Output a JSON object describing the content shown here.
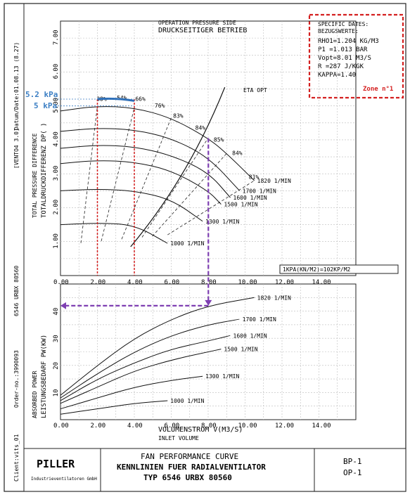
{
  "side": {
    "vento": "[VENTO4 3.0]",
    "date": "Datum/Date:01.08.13 (8.27)",
    "urbx": "6546 URBX 80560",
    "order": "Order-no.:3990093",
    "client": "Client:vits_01"
  },
  "header": {
    "line1": "OPERATION PRESSURE SIDE",
    "line2": "DRUCKSEITIGER BETRIEB"
  },
  "specific": {
    "title1": "SPECIFIC DATES:",
    "title2": "BEZUGSWERTE:",
    "lines": [
      "RHO1=1.204 KG/M3",
      "P1  =1.013 BAR",
      "Vopt=8.01  M3/S",
      "R   =287   J/KGK",
      "KAPPA=1.40"
    ],
    "zone": "Zone n°1"
  },
  "annotations": {
    "kpa52": "5.2 kPa",
    "kpa5": "5 kPa",
    "eta_opt": "ETA OPT",
    "unit_note": "1KPA(KN/M2)=102KP/M2"
  },
  "titleblock": {
    "brand": "PILLER",
    "brand_sub": "Industrieventilatoren GmbH",
    "t1": "FAN PERFORMANCE CURVE",
    "t2": "KENNLINIEN FUER RADIALVENTILATOR",
    "t3": "TYP    6546  URBX    80560",
    "bp": "BP-1",
    "op": "OP-1"
  },
  "chart_data": [
    {
      "type": "line",
      "xlabel": "",
      "ylabel_1": "TOTAL PRESSURE DIFFERENCE",
      "ylabel_2": "TOTALDRUCKDIFFERENZ DP(   )",
      "xlim": [
        0,
        16
      ],
      "ylim": [
        0,
        7.5
      ],
      "x_ticks": [
        "0.00",
        "2.00",
        "4.00",
        "6.00",
        "8.00",
        "10.00",
        "12.00",
        "14.00"
      ],
      "y_ticks": [
        "1.00",
        "2.00",
        "3.00",
        "4.00",
        "5.00",
        "6.00",
        "7.00"
      ],
      "series": [
        {
          "name": "1820 1/MIN",
          "x": [
            0,
            2,
            4,
            6,
            8,
            9,
            10.5
          ],
          "y": [
            4.85,
            5.0,
            4.95,
            4.65,
            4.05,
            3.6,
            2.8
          ]
        },
        {
          "name": "1700 1/MIN",
          "x": [
            0,
            2,
            4,
            6,
            8,
            9.7
          ],
          "y": [
            4.25,
            4.35,
            4.3,
            4.05,
            3.5,
            2.5
          ]
        },
        {
          "name": "1600 1/MIN",
          "x": [
            0,
            2,
            4,
            6,
            8,
            9.2
          ],
          "y": [
            3.75,
            3.85,
            3.8,
            3.55,
            3.05,
            2.3
          ]
        },
        {
          "name": "1500 1/MIN",
          "x": [
            0,
            2,
            4,
            6,
            8,
            8.7
          ],
          "y": [
            3.3,
            3.4,
            3.35,
            3.1,
            2.5,
            2.1
          ]
        },
        {
          "name": "1300 1/MIN",
          "x": [
            0,
            2,
            4,
            6,
            7.7
          ],
          "y": [
            2.5,
            2.55,
            2.5,
            2.25,
            1.6
          ]
        },
        {
          "name": "1000 1/MIN",
          "x": [
            0,
            2,
            4,
            5.8
          ],
          "y": [
            1.5,
            1.55,
            1.5,
            0.95
          ]
        }
      ],
      "efficiency_labels": [
        "38%",
        "54%",
        "66%",
        "76%",
        "83%",
        "84%",
        "85%",
        "84%",
        "81%"
      ],
      "eta_opt": {
        "x": [
          3.8,
          8.9
        ],
        "y": [
          0.85,
          5.55
        ]
      },
      "markers": {
        "x_lines": [
          2.0,
          4.0
        ],
        "v_opt": 8.01,
        "p_low": 5.0,
        "p_high": 5.2
      }
    },
    {
      "type": "line",
      "xlabel": "VOLUMENSTROM V(M3/S)",
      "xlabel2": "INLET VOLUME",
      "ylabel_1": "ABSORBED POWER",
      "ylabel_2": "LEISTUNGSBEDARF PW(KW)",
      "xlim": [
        0,
        16
      ],
      "ylim": [
        0,
        50
      ],
      "x_ticks": [
        "0.00",
        "2.00",
        "4.00",
        "6.00",
        "8.00",
        "10.00",
        "12.00",
        "14.00"
      ],
      "y_ticks": [
        "10",
        "20",
        "30",
        "40"
      ],
      "series": [
        {
          "name": "1820 1/MIN",
          "x": [
            0,
            2,
            4,
            6,
            8,
            10.5
          ],
          "y": [
            9,
            20,
            30,
            37,
            42,
            45
          ]
        },
        {
          "name": "1700 1/MIN",
          "x": [
            0,
            2,
            4,
            6,
            8,
            9.7
          ],
          "y": [
            8,
            17,
            25,
            31,
            35,
            37
          ]
        },
        {
          "name": "1600 1/MIN",
          "x": [
            0,
            2,
            4,
            6,
            8,
            9.2
          ],
          "y": [
            7,
            15,
            21,
            26,
            29,
            31
          ]
        },
        {
          "name": "1500 1/MIN",
          "x": [
            0,
            2,
            4,
            6,
            8,
            8.7
          ],
          "y": [
            6,
            12,
            18,
            22,
            25,
            26
          ]
        },
        {
          "name": "1300 1/MIN",
          "x": [
            0,
            2,
            4,
            6,
            7.7
          ],
          "y": [
            4,
            8,
            12,
            14.5,
            16
          ]
        },
        {
          "name": "1000 1/MIN",
          "x": [
            0,
            2,
            4,
            5.8
          ],
          "y": [
            2,
            4,
            6,
            7
          ]
        }
      ],
      "markers": {
        "v_opt": 8.01,
        "power": 42
      }
    }
  ]
}
